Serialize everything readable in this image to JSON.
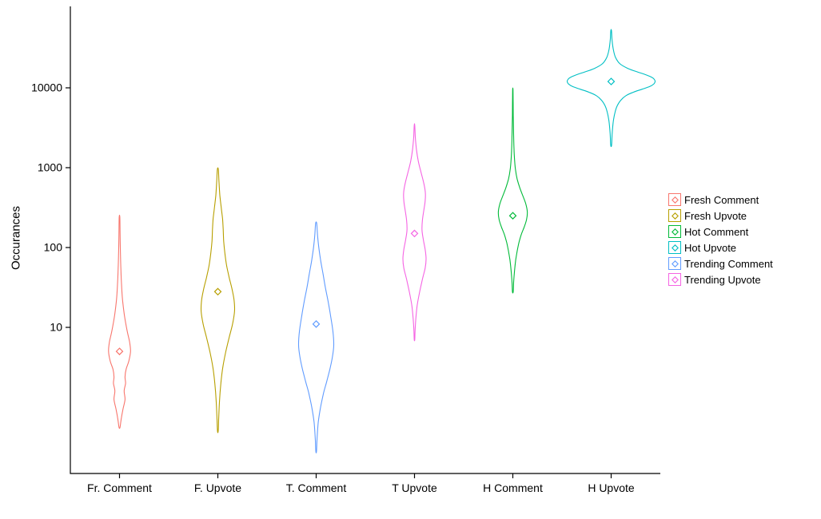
{
  "figure": {
    "background": "#ffffff"
  },
  "axis": {
    "color": "#000000"
  },
  "chart_data": {
    "type": "violin",
    "title": "",
    "xlabel": "",
    "ylabel": "Occurances",
    "y_scale": "log10",
    "grid": false,
    "legend_position": "right",
    "y_ticks": [
      {
        "value": 10,
        "label": "10"
      },
      {
        "value": 100,
        "label": "100"
      },
      {
        "value": 1000,
        "label": "1000"
      },
      {
        "value": 10000,
        "label": "10000"
      }
    ],
    "categories": [
      "Fr. Comment",
      "F. Upvote",
      "T. Comment",
      "T Upvote",
      "H Comment",
      "H Upvote"
    ],
    "series": [
      {
        "name": "Fresh Comment",
        "category": "Fr. Comment",
        "color": "#F8766D",
        "marker_value": 5,
        "value_range": [
          0.55,
          240
        ],
        "relative_width": 0.25,
        "profile": [
          [
            240,
            0.03
          ],
          [
            150,
            0.05
          ],
          [
            90,
            0.08
          ],
          [
            55,
            0.12
          ],
          [
            35,
            0.18
          ],
          [
            22,
            0.28
          ],
          [
            14,
            0.45
          ],
          [
            9,
            0.7
          ],
          [
            6.5,
            0.92
          ],
          [
            5,
            1.0
          ],
          [
            3.8,
            0.85
          ],
          [
            3.0,
            0.6
          ],
          [
            2.4,
            0.5
          ],
          [
            2.0,
            0.55
          ],
          [
            1.6,
            0.42
          ],
          [
            1.25,
            0.5
          ],
          [
            0.95,
            0.32
          ],
          [
            0.75,
            0.18
          ],
          [
            0.6,
            0.08
          ],
          [
            0.55,
            0.03
          ]
        ]
      },
      {
        "name": "Fresh Upvote",
        "category": "F. Upvote",
        "color": "#B79F00",
        "marker_value": 28,
        "value_range": [
          0.5,
          950
        ],
        "relative_width": 0.38,
        "profile": [
          [
            950,
            0.03
          ],
          [
            650,
            0.07
          ],
          [
            450,
            0.12
          ],
          [
            320,
            0.2
          ],
          [
            230,
            0.28
          ],
          [
            170,
            0.32
          ],
          [
            120,
            0.35
          ],
          [
            85,
            0.42
          ],
          [
            60,
            0.52
          ],
          [
            42,
            0.68
          ],
          [
            30,
            0.85
          ],
          [
            22,
            0.97
          ],
          [
            16,
            1.0
          ],
          [
            11,
            0.88
          ],
          [
            7.5,
            0.68
          ],
          [
            5,
            0.48
          ],
          [
            3.2,
            0.3
          ],
          [
            2,
            0.18
          ],
          [
            1.2,
            0.1
          ],
          [
            0.7,
            0.05
          ],
          [
            0.5,
            0.02
          ]
        ]
      },
      {
        "name": "Trending Comment",
        "category": "T. Comment",
        "color": "#619CFF",
        "marker_value": 11,
        "value_range": [
          0.28,
          200
        ],
        "relative_width": 0.4,
        "profile": [
          [
            200,
            0.03
          ],
          [
            140,
            0.08
          ],
          [
            100,
            0.15
          ],
          [
            70,
            0.25
          ],
          [
            48,
            0.38
          ],
          [
            32,
            0.52
          ],
          [
            21,
            0.68
          ],
          [
            14,
            0.82
          ],
          [
            9,
            0.95
          ],
          [
            6,
            1.0
          ],
          [
            4.2,
            0.92
          ],
          [
            3,
            0.78
          ],
          [
            2.1,
            0.6
          ],
          [
            1.5,
            0.42
          ],
          [
            1.0,
            0.25
          ],
          [
            0.65,
            0.12
          ],
          [
            0.4,
            0.05
          ],
          [
            0.28,
            0.02
          ]
        ]
      },
      {
        "name": "Trending Upvote",
        "category": "T Upvote",
        "color": "#F564E3",
        "marker_value": 150,
        "value_range": [
          7,
          3400
        ],
        "relative_width": 0.31,
        "profile": [
          [
            3400,
            0.02
          ],
          [
            2400,
            0.06
          ],
          [
            1700,
            0.14
          ],
          [
            1200,
            0.28
          ],
          [
            850,
            0.5
          ],
          [
            620,
            0.7
          ],
          [
            480,
            0.8
          ],
          [
            380,
            0.78
          ],
          [
            290,
            0.68
          ],
          [
            220,
            0.58
          ],
          [
            165,
            0.55
          ],
          [
            125,
            0.65
          ],
          [
            95,
            0.78
          ],
          [
            72,
            0.85
          ],
          [
            55,
            0.78
          ],
          [
            40,
            0.58
          ],
          [
            28,
            0.38
          ],
          [
            19,
            0.2
          ],
          [
            13,
            0.1
          ],
          [
            9,
            0.04
          ],
          [
            7,
            0.02
          ]
        ]
      },
      {
        "name": "Hot Comment",
        "category": "H Comment",
        "color": "#00BA38",
        "marker_value": 250,
        "value_range": [
          28,
          9500
        ],
        "relative_width": 0.33,
        "profile": [
          [
            9500,
            0.012
          ],
          [
            6500,
            0.02
          ],
          [
            4500,
            0.03
          ],
          [
            3200,
            0.045
          ],
          [
            2300,
            0.06
          ],
          [
            1700,
            0.08
          ],
          [
            1250,
            0.12
          ],
          [
            950,
            0.18
          ],
          [
            720,
            0.3
          ],
          [
            560,
            0.48
          ],
          [
            440,
            0.7
          ],
          [
            350,
            0.9
          ],
          [
            280,
            1.0
          ],
          [
            225,
            0.95
          ],
          [
            180,
            0.78
          ],
          [
            145,
            0.58
          ],
          [
            115,
            0.42
          ],
          [
            90,
            0.3
          ],
          [
            70,
            0.2
          ],
          [
            52,
            0.12
          ],
          [
            38,
            0.06
          ],
          [
            28,
            0.025
          ]
        ]
      },
      {
        "name": "Hot Upvote",
        "category": "H Upvote",
        "color": "#00BFC4",
        "marker_value": 12000,
        "value_range": [
          1900,
          52000
        ],
        "relative_width": 1.0,
        "profile": [
          [
            52000,
            0.008
          ],
          [
            40000,
            0.02
          ],
          [
            30000,
            0.05
          ],
          [
            24000,
            0.1
          ],
          [
            20000,
            0.2
          ],
          [
            17500,
            0.38
          ],
          [
            15800,
            0.6
          ],
          [
            14500,
            0.8
          ],
          [
            13500,
            0.93
          ],
          [
            12800,
            0.98
          ],
          [
            12000,
            1.0
          ],
          [
            11200,
            0.97
          ],
          [
            10400,
            0.88
          ],
          [
            9600,
            0.7
          ],
          [
            8800,
            0.5
          ],
          [
            8000,
            0.34
          ],
          [
            7000,
            0.22
          ],
          [
            6000,
            0.14
          ],
          [
            5000,
            0.09
          ],
          [
            4000,
            0.055
          ],
          [
            3200,
            0.035
          ],
          [
            2500,
            0.02
          ],
          [
            1900,
            0.01
          ]
        ]
      }
    ],
    "legend": [
      {
        "label": "Fresh Comment",
        "color": "#F8766D"
      },
      {
        "label": "Fresh Upvote",
        "color": "#B79F00"
      },
      {
        "label": "Hot Comment",
        "color": "#00BA38"
      },
      {
        "label": "Hot Upvote",
        "color": "#00BFC4"
      },
      {
        "label": "Trending Comment",
        "color": "#619CFF"
      },
      {
        "label": "Trending Upvote",
        "color": "#F564E3"
      }
    ]
  }
}
